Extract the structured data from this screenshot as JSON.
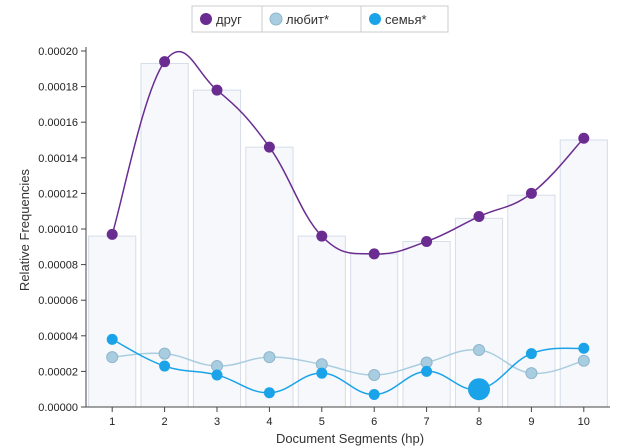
{
  "chart_data": {
    "type": "line",
    "x": [
      1,
      2,
      3,
      4,
      5,
      6,
      7,
      8,
      9,
      10
    ],
    "xlabel": "Document Segments (hp)",
    "ylabel": "Relative Frequencies",
    "ylim": [
      0,
      0.0002
    ],
    "ytick_labels": [
      "0.00000",
      "0.00002",
      "0.00004",
      "0.00006",
      "0.00008",
      "0.00010",
      "0.00012",
      "0.00014",
      "0.00016",
      "0.00018",
      "0.00020"
    ],
    "xtick_labels": [
      "1",
      "2",
      "3",
      "4",
      "5",
      "6",
      "7",
      "8",
      "9",
      "10"
    ],
    "legend_position": "top-center",
    "bars": [
      9.6e-05,
      0.000193,
      0.000178,
      0.000146,
      9.6e-05,
      8.6e-05,
      9.3e-05,
      0.000106,
      0.000119,
      0.00015
    ],
    "series": [
      {
        "name": "друг",
        "color": "#6a2c91",
        "values": [
          9.7e-05,
          0.000194,
          0.000178,
          0.000146,
          9.6e-05,
          8.6e-05,
          9.3e-05,
          0.000107,
          0.00012,
          0.000151
        ]
      },
      {
        "name": "любит*",
        "color": "#a9cde0",
        "values": [
          2.8e-05,
          3e-05,
          2.3e-05,
          2.8e-05,
          2.4e-05,
          1.8e-05,
          2.5e-05,
          3.2e-05,
          1.9e-05,
          2.6e-05
        ]
      },
      {
        "name": "семья*",
        "color": "#1aa3e8",
        "values": [
          3.8e-05,
          2.3e-05,
          1.8e-05,
          8e-06,
          1.9e-05,
          7e-06,
          2e-05,
          1e-05,
          3e-05,
          3.3e-05
        ]
      }
    ],
    "highlight": {
      "series": 2,
      "index": 7
    }
  }
}
